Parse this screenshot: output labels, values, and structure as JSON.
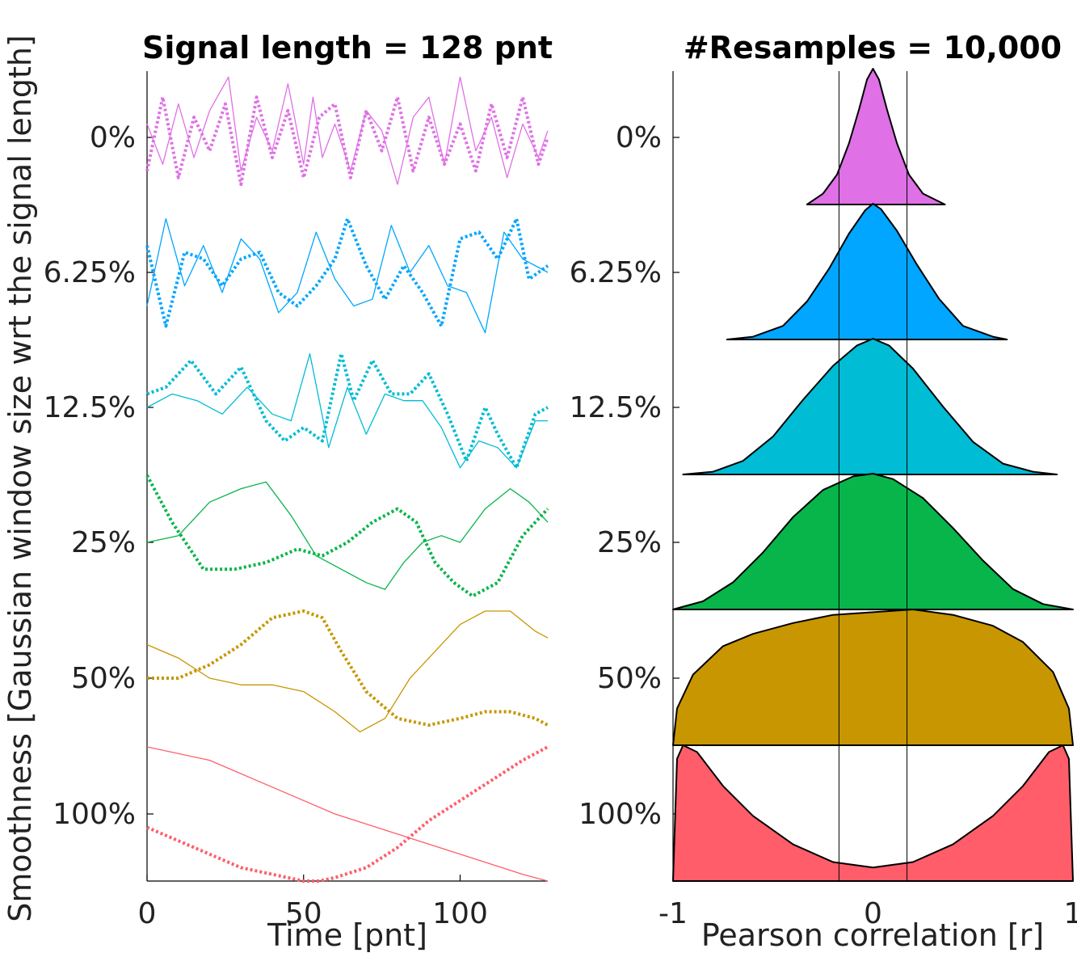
{
  "ylabel": "Smoothness [Gaussian window size wrt the signal length]",
  "panels": [
    {
      "title": "Signal length = 128 pnt",
      "xlabel": "Time [pnt]",
      "x_ticks": [
        "0",
        "50",
        "100"
      ],
      "row_labels": [
        "0%",
        "6.25%",
        "12.5%",
        "25%",
        "50%",
        "100%"
      ]
    },
    {
      "title": "#Resamples = 10,000",
      "xlabel": "Pearson correlation [r]",
      "x_ticks": [
        "-1",
        "0",
        "1"
      ],
      "row_labels": [
        "0%",
        "6.25%",
        "12.5%",
        "25%",
        "50%",
        "100%"
      ]
    }
  ],
  "colors": [
    "#df70e6",
    "#00a6ff",
    "#00bcd5",
    "#07b54a",
    "#c89600",
    "#ff5d6a"
  ],
  "chart_data": [
    {
      "type": "line",
      "title": "Signal length = 128 pnt",
      "xlabel": "Time [pnt]",
      "ylabel": "Smoothness [Gaussian window size wrt the signal length]",
      "xlim": [
        0,
        128
      ],
      "grid": false,
      "rows": [
        {
          "label": "0%",
          "color": "#df70e6",
          "solid": {
            "x": [
              0,
              5,
              10,
              15,
              20,
              26,
              30,
              35,
              40,
              45,
              50,
              53,
              56,
              60,
              65,
              70,
              75,
              80,
              85,
              90,
              95,
              100,
              105,
              110,
              115,
              120,
              125,
              128
            ],
            "y": [
              0.2,
              -0.4,
              0.5,
              -0.3,
              0.4,
              0.9,
              -0.5,
              0.3,
              -0.2,
              0.8,
              -0.4,
              0.6,
              -0.3,
              0.2,
              -0.5,
              0.4,
              0.1,
              -0.7,
              0.3,
              0.6,
              -0.4,
              0.9,
              -0.2,
              0.3,
              -0.6,
              0.2,
              -0.3,
              0.1
            ]
          },
          "dotted": {
            "x": [
              0,
              5,
              10,
              15,
              20,
              25,
              30,
              35,
              40,
              45,
              50,
              55,
              60,
              65,
              70,
              75,
              80,
              85,
              90,
              95,
              100,
              105,
              110,
              115,
              120,
              125,
              128
            ],
            "y": [
              -0.5,
              0.6,
              -0.6,
              0.3,
              -0.2,
              0.5,
              -0.7,
              0.6,
              -0.3,
              0.4,
              -0.6,
              0.3,
              0.5,
              -0.6,
              0.4,
              -0.2,
              0.6,
              -0.5,
              0.3,
              -0.4,
              0.2,
              -0.5,
              0.5,
              -0.3,
              0.6,
              -0.4,
              0.0
            ]
          }
        },
        {
          "label": "6.25%",
          "color": "#00a6ff",
          "solid": {
            "x": [
              0,
              6,
              12,
              18,
              24,
              30,
              36,
              42,
              48,
              54,
              60,
              66,
              72,
              78,
              84,
              90,
              96,
              102,
              108,
              114,
              120,
              128
            ],
            "y": [
              -0.5,
              0.8,
              -0.2,
              0.4,
              -0.3,
              0.5,
              0.2,
              -0.6,
              -0.3,
              0.6,
              -0.1,
              -0.5,
              -0.4,
              0.7,
              0.0,
              0.4,
              -0.2,
              -0.3,
              -0.9,
              0.6,
              0.2,
              0.0
            ]
          },
          "dotted": {
            "x": [
              0,
              6,
              12,
              18,
              24,
              30,
              36,
              42,
              48,
              54,
              60,
              64,
              70,
              76,
              82,
              88,
              94,
              100,
              106,
              112,
              118,
              122,
              128
            ],
            "y": [
              0.4,
              -0.8,
              0.3,
              0.2,
              -0.2,
              0.2,
              0.3,
              -0.3,
              -0.5,
              -0.2,
              0.2,
              0.8,
              0.1,
              -0.4,
              0.1,
              -0.3,
              -0.8,
              0.5,
              0.6,
              0.2,
              0.8,
              -0.1,
              0.1
            ]
          }
        },
        {
          "label": "12.5%",
          "color": "#00bcd5",
          "solid": {
            "x": [
              0,
              8,
              16,
              24,
              32,
              40,
              46,
              52,
              58,
              64,
              70,
              76,
              82,
              88,
              94,
              100,
              106,
              112,
              118,
              124,
              128
            ],
            "y": [
              0.0,
              0.2,
              0.1,
              -0.1,
              0.3,
              -0.1,
              -0.2,
              0.8,
              -0.6,
              0.3,
              -0.4,
              0.2,
              0.1,
              0.1,
              -0.3,
              -0.9,
              -0.5,
              -0.6,
              -0.9,
              -0.2,
              -0.2
            ]
          },
          "dotted": {
            "x": [
              0,
              6,
              14,
              22,
              30,
              38,
              44,
              50,
              56,
              62,
              66,
              72,
              78,
              84,
              90,
              96,
              102,
              108,
              112,
              118,
              124,
              128
            ],
            "y": [
              0.2,
              0.3,
              0.7,
              0.2,
              0.6,
              -0.2,
              -0.5,
              -0.3,
              -0.5,
              0.8,
              0.1,
              0.7,
              0.2,
              0.2,
              0.5,
              -0.1,
              -0.8,
              0.0,
              -0.4,
              -0.9,
              -0.1,
              0.0
            ]
          }
        },
        {
          "label": "25%",
          "color": "#07b54a",
          "solid": {
            "x": [
              0,
              10,
              20,
              30,
              38,
              46,
              54,
              62,
              70,
              76,
              82,
              88,
              94,
              100,
              108,
              116,
              122,
              128
            ],
            "y": [
              0.0,
              0.1,
              0.6,
              0.8,
              0.9,
              0.4,
              -0.2,
              -0.4,
              -0.6,
              -0.7,
              -0.3,
              0.0,
              0.1,
              0.0,
              0.5,
              0.8,
              0.6,
              0.3
            ]
          },
          "dotted": {
            "x": [
              0,
              8,
              18,
              28,
              38,
              48,
              56,
              64,
              72,
              80,
              86,
              92,
              98,
              104,
              112,
              120,
              128
            ],
            "y": [
              1.0,
              0.3,
              -0.4,
              -0.4,
              -0.3,
              -0.1,
              -0.2,
              0.0,
              0.3,
              0.5,
              0.3,
              -0.3,
              -0.6,
              -0.8,
              -0.6,
              0.1,
              0.5
            ]
          }
        },
        {
          "label": "50%",
          "color": "#c89600",
          "solid": {
            "x": [
              0,
              10,
              20,
              30,
              40,
              50,
              60,
              68,
              76,
              84,
              92,
              100,
              108,
              116,
              124,
              128
            ],
            "y": [
              0.5,
              0.3,
              0.0,
              -0.1,
              -0.1,
              -0.2,
              -0.5,
              -0.8,
              -0.6,
              0.0,
              0.4,
              0.8,
              1.0,
              1.0,
              0.7,
              0.6
            ]
          },
          "dotted": {
            "x": [
              0,
              10,
              20,
              30,
              40,
              50,
              56,
              62,
              70,
              80,
              90,
              100,
              108,
              116,
              124,
              128
            ],
            "y": [
              0.0,
              0.0,
              0.2,
              0.5,
              0.9,
              1.0,
              0.9,
              0.4,
              -0.2,
              -0.6,
              -0.7,
              -0.6,
              -0.5,
              -0.5,
              -0.6,
              -0.7
            ]
          }
        },
        {
          "label": "100%",
          "color": "#ff5d6a",
          "solid": {
            "x": [
              0,
              20,
              40,
              60,
              80,
              100,
              120,
              128
            ],
            "y": [
              1.0,
              0.8,
              0.4,
              0.0,
              -0.3,
              -0.6,
              -0.9,
              -1.0
            ]
          },
          "dotted": {
            "x": [
              0,
              10,
              20,
              30,
              40,
              50,
              55,
              60,
              70,
              80,
              90,
              100,
              110,
              120,
              128
            ],
            "y": [
              -0.2,
              -0.4,
              -0.6,
              -0.8,
              -0.9,
              -1.0,
              -1.0,
              -0.95,
              -0.8,
              -0.5,
              -0.1,
              0.2,
              0.5,
              0.8,
              1.0
            ]
          }
        }
      ]
    },
    {
      "type": "area",
      "title": "#Resamples = 10,000",
      "xlabel": "Pearson correlation [r]",
      "ylabel": "Smoothness [Gaussian window size wrt the signal length]",
      "xlim": [
        -1,
        1
      ],
      "reference_lines_x": [
        -0.17,
        0.17
      ],
      "grid": false,
      "rows": [
        {
          "label": "0%",
          "color": "#df70e6",
          "x": [
            -0.33,
            -0.25,
            -0.18,
            -0.12,
            -0.07,
            -0.03,
            0.0,
            0.03,
            0.07,
            0.12,
            0.18,
            0.25,
            0.36
          ],
          "density": [
            0.0,
            0.08,
            0.22,
            0.45,
            0.7,
            0.92,
            1.0,
            0.92,
            0.7,
            0.45,
            0.22,
            0.08,
            0.0
          ]
        },
        {
          "label": "6.25%",
          "color": "#00a6ff",
          "x": [
            -0.73,
            -0.6,
            -0.45,
            -0.33,
            -0.22,
            -0.12,
            -0.04,
            0.0,
            0.04,
            0.12,
            0.22,
            0.33,
            0.45,
            0.6,
            0.67
          ],
          "density": [
            0.0,
            0.02,
            0.1,
            0.28,
            0.52,
            0.78,
            0.95,
            1.0,
            0.96,
            0.8,
            0.55,
            0.3,
            0.1,
            0.02,
            0.0
          ]
        },
        {
          "label": "12.5%",
          "color": "#00bcd5",
          "x": [
            -0.95,
            -0.8,
            -0.65,
            -0.5,
            -0.35,
            -0.2,
            -0.08,
            0.0,
            0.08,
            0.2,
            0.35,
            0.5,
            0.65,
            0.8,
            0.92
          ],
          "density": [
            0.0,
            0.02,
            0.1,
            0.28,
            0.55,
            0.8,
            0.95,
            1.0,
            0.95,
            0.78,
            0.5,
            0.24,
            0.08,
            0.02,
            0.0
          ]
        },
        {
          "label": "25%",
          "color": "#07b54a",
          "x": [
            -1.0,
            -0.85,
            -0.7,
            -0.55,
            -0.4,
            -0.25,
            -0.1,
            0.0,
            0.1,
            0.25,
            0.4,
            0.55,
            0.7,
            0.85,
            1.0
          ],
          "density": [
            0.0,
            0.06,
            0.2,
            0.42,
            0.68,
            0.88,
            0.98,
            1.0,
            0.96,
            0.82,
            0.6,
            0.36,
            0.15,
            0.04,
            0.0
          ]
        },
        {
          "label": "50%",
          "color": "#c89600",
          "x": [
            -1.0,
            -0.98,
            -0.9,
            -0.75,
            -0.6,
            -0.4,
            -0.2,
            0.0,
            0.2,
            0.4,
            0.6,
            0.75,
            0.9,
            0.98,
            1.0
          ],
          "density": [
            0.0,
            0.27,
            0.52,
            0.73,
            0.82,
            0.9,
            0.96,
            0.98,
            1.0,
            0.96,
            0.88,
            0.76,
            0.54,
            0.27,
            0.0
          ]
        },
        {
          "label": "100%",
          "color": "#ff5d6a",
          "x": [
            -1.0,
            -0.98,
            -0.95,
            -0.88,
            -0.75,
            -0.6,
            -0.4,
            -0.2,
            0.0,
            0.2,
            0.4,
            0.6,
            0.75,
            0.88,
            0.95,
            0.98,
            1.0
          ],
          "density": [
            0.0,
            0.9,
            1.0,
            0.95,
            0.7,
            0.48,
            0.27,
            0.14,
            0.1,
            0.14,
            0.27,
            0.48,
            0.7,
            0.95,
            1.0,
            0.9,
            0.0
          ]
        }
      ]
    }
  ]
}
